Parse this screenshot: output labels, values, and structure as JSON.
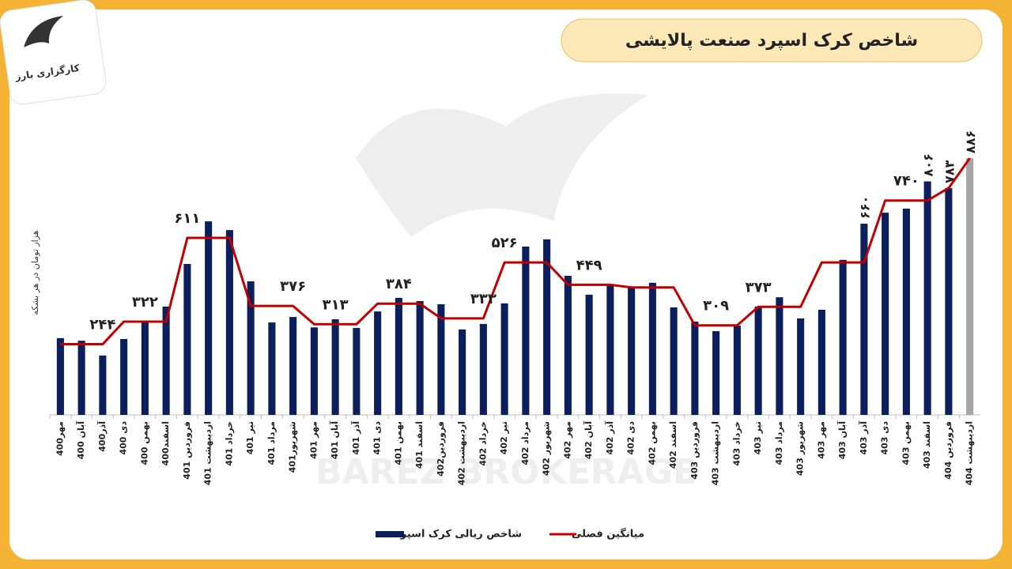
{
  "logo_text": "کارگزاری بارز",
  "watermark": "BAREZ BROKERAGE",
  "chart_data": {
    "type": "bar",
    "title": "شاخص کرک اسپرد صنعت پالایشی",
    "ylabel": "هزار تومان در هر بشکه",
    "categories": [
      "مهر400",
      "آبان 400",
      "آذر400",
      "دی 400",
      "بهمن 400",
      "اسفند400",
      "فروردین 401",
      "اردیبهشت 401",
      "خرداد 401",
      "تیر 401",
      "مرداد 401",
      "شهریور401",
      "مهر 401",
      "آبان 401",
      "آذر 401",
      "دی 401",
      "بهمن 401",
      "اسفند 401",
      "فروردین402",
      "اردیبهشت 402",
      "خرداد 402",
      "تیر 402",
      "مرداد 402",
      "شهریور 402",
      "مهر 402",
      "آبان 402",
      "آذر 402",
      "دی 402",
      "بهمن 402",
      "اسفند 402",
      "فروردین 403",
      "اردیبهشت 403",
      "خرداد 403",
      "تیر 403",
      "مرداد 403",
      "شهریور 403",
      "مهر 403",
      "آبان 403",
      "آذر 403",
      "دی 403",
      "بهمن 403",
      "اسفند 403",
      "فروردین 404",
      "اردیبهشت 404"
    ],
    "ylim": [
      0,
      1000
    ],
    "series": [
      {
        "name": "شاخص ریالی کرک اسپرد",
        "type": "bar",
        "color": "#0b1f5c",
        "colors": [
          "#0b1f5c",
          "#0b1f5c",
          "#0b1f5c",
          "#0b1f5c",
          "#0b1f5c",
          "#0b1f5c",
          "#0b1f5c",
          "#0b1f5c",
          "#0b1f5c",
          "#0b1f5c",
          "#0b1f5c",
          "#0b1f5c",
          "#0b1f5c",
          "#0b1f5c",
          "#0b1f5c",
          "#0b1f5c",
          "#0b1f5c",
          "#0b1f5c",
          "#0b1f5c",
          "#0b1f5c",
          "#0b1f5c",
          "#0b1f5c",
          "#0b1f5c",
          "#0b1f5c",
          "#0b1f5c",
          "#0b1f5c",
          "#0b1f5c",
          "#0b1f5c",
          "#0b1f5c",
          "#0b1f5c",
          "#0b1f5c",
          "#0b1f5c",
          "#0b1f5c",
          "#0b1f5c",
          "#0b1f5c",
          "#0b1f5c",
          "#0b1f5c",
          "#0b1f5c",
          "#0b1f5c",
          "#0b1f5c",
          "#0b1f5c",
          "#0b1f5c",
          "#0b1f5c",
          "#a6a6a6"
        ],
        "values": [
          265,
          256,
          205,
          262,
          322,
          374,
          521,
          668,
          638,
          461,
          319,
          338,
          302,
          330,
          300,
          357,
          404,
          393,
          382,
          295,
          314,
          385,
          581,
          606,
          480,
          415,
          447,
          442,
          456,
          371,
          322,
          289,
          308,
          374,
          406,
          333,
          363,
          535,
          660,
          698,
          712,
          806,
          783,
          886
        ],
        "value_labels": [
          null,
          null,
          null,
          null,
          null,
          null,
          null,
          null,
          null,
          null,
          null,
          null,
          null,
          null,
          null,
          null,
          null,
          null,
          null,
          null,
          null,
          null,
          null,
          null,
          null,
          null,
          null,
          null,
          null,
          null,
          null,
          null,
          null,
          null,
          null,
          null,
          null,
          null,
          "۶۶۰",
          null,
          null,
          "۸۰۶",
          "۷۸۳",
          "۸۸۶"
        ]
      },
      {
        "name": "میانگین فصلی",
        "type": "line",
        "color": "#c00000",
        "values": [
          244,
          244,
          244,
          322,
          322,
          322,
          611,
          611,
          611,
          376,
          376,
          376,
          313,
          313,
          313,
          384,
          384,
          384,
          333,
          333,
          333,
          526,
          526,
          526,
          449,
          449,
          449,
          440,
          440,
          440,
          309,
          309,
          309,
          373,
          373,
          373,
          526,
          526,
          526,
          740,
          740,
          740,
          783,
          886
        ],
        "value_labels": [
          null,
          null,
          "۲۴۴",
          null,
          "۳۲۲",
          null,
          "۶۱۱",
          null,
          null,
          null,
          null,
          "۳۷۶",
          null,
          "۳۱۳",
          null,
          null,
          "۳۸۴",
          null,
          null,
          null,
          "۳۳۳",
          "۵۲۶",
          null,
          null,
          null,
          "۴۴۹",
          null,
          null,
          null,
          null,
          null,
          "۳۰۹",
          null,
          "۳۷۳",
          null,
          null,
          null,
          null,
          null,
          null,
          "۷۴۰",
          null,
          null,
          null
        ]
      }
    ]
  }
}
